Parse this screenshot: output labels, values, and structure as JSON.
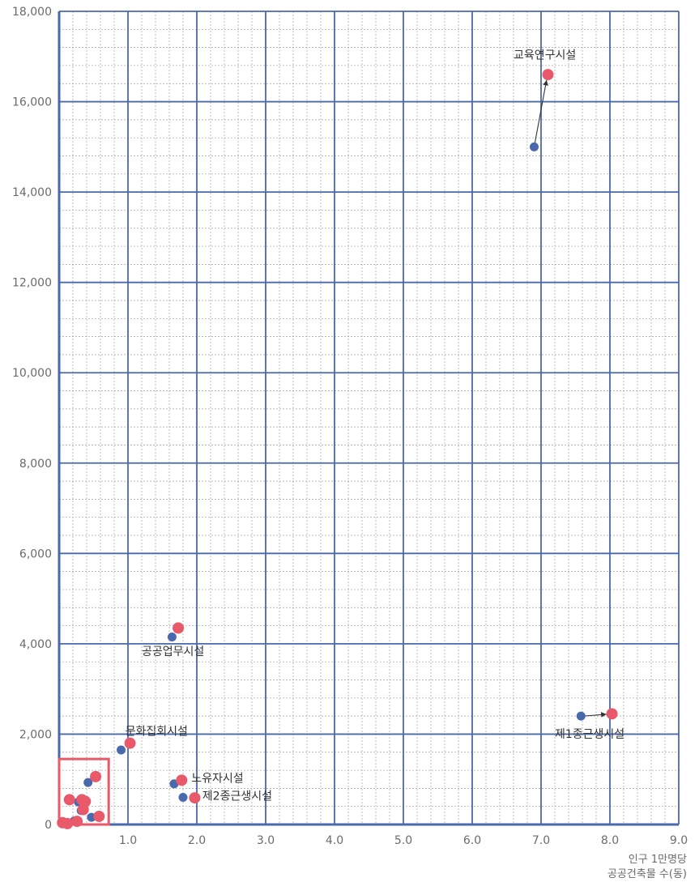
{
  "chart_data": {
    "type": "scatter",
    "xlabel": [
      "인구 1만명당",
      "공공건축물 수(동)"
    ],
    "xlim": [
      0,
      9
    ],
    "ylim": [
      0,
      18000
    ],
    "x_ticks": [
      {
        "value": 1,
        "label": "1.0"
      },
      {
        "value": 2,
        "label": "2.0"
      },
      {
        "value": 3,
        "label": "3.0"
      },
      {
        "value": 4,
        "label": "4.0"
      },
      {
        "value": 5,
        "label": "5.0"
      },
      {
        "value": 6,
        "label": "6.0"
      },
      {
        "value": 7,
        "label": "7.0"
      },
      {
        "value": 8,
        "label": "8.0"
      },
      {
        "value": 9,
        "label": "9.0"
      }
    ],
    "y_ticks": [
      {
        "value": 0,
        "label": "0"
      },
      {
        "value": 2000,
        "label": "2,000"
      },
      {
        "value": 4000,
        "label": "4,000"
      },
      {
        "value": 6000,
        "label": "6,000"
      },
      {
        "value": 8000,
        "label": "8,000"
      },
      {
        "value": 10000,
        "label": "10,000"
      },
      {
        "value": 12000,
        "label": "12,000"
      },
      {
        "value": 14000,
        "label": "14,000"
      },
      {
        "value": 16000,
        "label": "16,000"
      },
      {
        "value": 18000,
        "label": "18,000"
      }
    ],
    "grid": {
      "major": true,
      "minor": true
    },
    "colors": {
      "series_a": "#4a68ad",
      "series_b": "#e85a6a",
      "grid": "#4a68ad",
      "minor_grid": "#a0a0a0",
      "highlight_box": "#e85a6a",
      "arrow": "#333333"
    },
    "series": [
      {
        "points": [
          {
            "x": 6.9,
            "y": 15000
          },
          {
            "x": 7.58,
            "y": 2400
          },
          {
            "x": 1.64,
            "y": 4150
          },
          {
            "x": 0.9,
            "y": 1650
          },
          {
            "x": 1.67,
            "y": 900
          },
          {
            "x": 1.8,
            "y": 600
          },
          {
            "x": 0.42,
            "y": 930
          },
          {
            "x": 0.28,
            "y": 500
          },
          {
            "x": 0.32,
            "y": 310
          },
          {
            "x": 0.47,
            "y": 160
          },
          {
            "x": 0.22,
            "y": 80
          },
          {
            "x": 0.1,
            "y": 30
          },
          {
            "x": 0.04,
            "y": 50
          }
        ]
      },
      {
        "points": [
          {
            "x": 7.1,
            "y": 16600
          },
          {
            "x": 8.03,
            "y": 2450
          },
          {
            "x": 1.73,
            "y": 4350
          },
          {
            "x": 1.03,
            "y": 1800
          },
          {
            "x": 1.78,
            "y": 980
          },
          {
            "x": 1.97,
            "y": 590
          },
          {
            "x": 0.53,
            "y": 1060
          },
          {
            "x": 0.15,
            "y": 550
          },
          {
            "x": 0.33,
            "y": 550
          },
          {
            "x": 0.38,
            "y": 510
          },
          {
            "x": 0.35,
            "y": 330
          },
          {
            "x": 0.58,
            "y": 180
          },
          {
            "x": 0.26,
            "y": 70
          },
          {
            "x": 0.12,
            "y": 20
          },
          {
            "x": 0.05,
            "y": 40
          }
        ]
      }
    ],
    "annotations": [
      {
        "text": "교육연구시설",
        "x": 6.6,
        "y": 16950
      },
      {
        "text": "공공업무시설",
        "x": 1.2,
        "y": 3750
      },
      {
        "text": "문화집회시설",
        "x": 0.96,
        "y": 1980
      },
      {
        "text": "노유자시설",
        "x": 1.92,
        "y": 940
      },
      {
        "text": "제2종근생시설",
        "x": 2.08,
        "y": 550
      },
      {
        "text": "제1종근생시설",
        "x": 7.2,
        "y": 1920
      }
    ],
    "arrows": [
      {
        "from": [
          6.9,
          15000
        ],
        "to": [
          7.08,
          16480
        ]
      },
      {
        "from": [
          7.62,
          2400
        ],
        "to": [
          7.95,
          2440
        ]
      }
    ],
    "highlight_box": {
      "x0": 0.0,
      "x1": 0.72,
      "y0": 0,
      "y1": 1450
    }
  }
}
